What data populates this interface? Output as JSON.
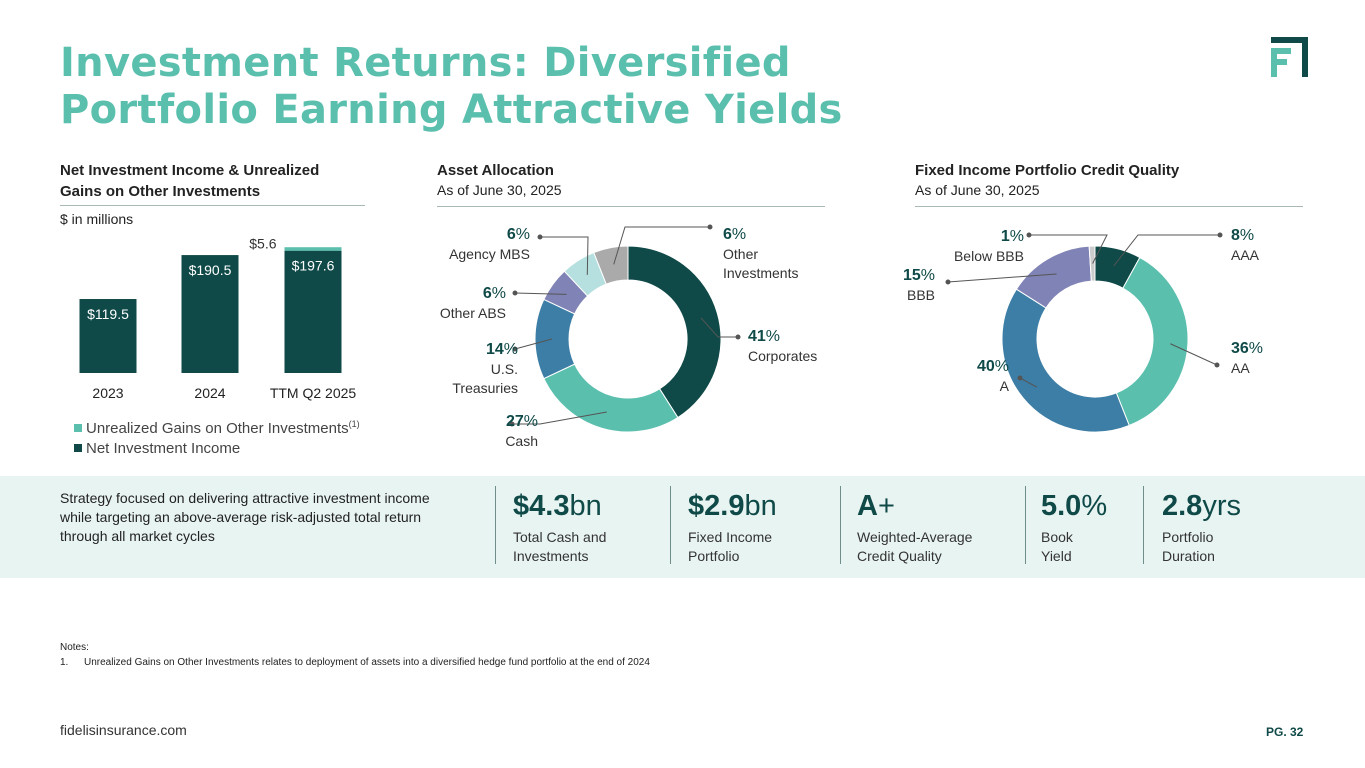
{
  "title": {
    "line1": "Investment Returns: Diversified",
    "line2": "Portfolio Earning Attractive Yields"
  },
  "colors": {
    "dark_teal": "#0f4a48",
    "teal": "#5bbfae",
    "steel_blue": "#3d7ea6",
    "lavender": "#8083b5",
    "light_teal": "#b6e0df",
    "gray": "#aaaaaa",
    "light_gray": "#cccccc",
    "band": "#e8f4f2"
  },
  "nii_section": {
    "heading_line1": "Net Investment Income & Unrealized",
    "heading_line2": "Gains on Other Investments",
    "units": "$ in millions",
    "legend_unrealized": "Unrealized Gains on Other Investments",
    "legend_unrealized_note": "(1)",
    "legend_nii": "Net Investment Income"
  },
  "asset_section": {
    "heading": "Asset Allocation",
    "as_of": "As of June 30, 2025"
  },
  "credit_section": {
    "heading": "Fixed Income Portfolio Credit Quality",
    "as_of": "As of June 30, 2025"
  },
  "chart_data": [
    {
      "type": "bar",
      "stacked": true,
      "title": "Net Investment Income & Unrealized Gains on Other Investments",
      "ylabel": "$ in millions",
      "categories": [
        "2023",
        "2024",
        "TTM Q2 2025"
      ],
      "series": [
        {
          "name": "Net Investment Income",
          "values": [
            119.5,
            190.5,
            197.6
          ],
          "labels": [
            "$119.5",
            "$190.5",
            "$197.6"
          ],
          "color": "#0f4a48"
        },
        {
          "name": "Unrealized Gains on Other Investments",
          "values": [
            0,
            0,
            5.6
          ],
          "labels": [
            "",
            "",
            "$5.6"
          ],
          "color": "#5bbfae"
        }
      ],
      "ylim": [
        0,
        210
      ],
      "grid": false
    },
    {
      "type": "pie",
      "donut": true,
      "title": "Asset Allocation",
      "subtitle": "As of June 30, 2025",
      "slices": [
        {
          "label": "Corporates",
          "value": 41,
          "color": "#0f4a48"
        },
        {
          "label": "Cash",
          "value": 27,
          "color": "#5bbfae"
        },
        {
          "label": "U.S. Treasuries",
          "value": 14,
          "color": "#3d7ea6"
        },
        {
          "label": "Other ABS",
          "value": 6,
          "color": "#8083b5"
        },
        {
          "label": "Agency MBS",
          "value": 6,
          "color": "#b6e0df"
        },
        {
          "label": "Other Investments",
          "value": 6,
          "color": "#aaaaaa"
        }
      ]
    },
    {
      "type": "pie",
      "donut": true,
      "title": "Fixed Income Portfolio Credit Quality",
      "subtitle": "As of June 30, 2025",
      "slices": [
        {
          "label": "AAA",
          "value": 8,
          "color": "#0f4a48"
        },
        {
          "label": "AA",
          "value": 36,
          "color": "#5bbfae"
        },
        {
          "label": "A",
          "value": 40,
          "color": "#3d7ea6"
        },
        {
          "label": "BBB",
          "value": 15,
          "color": "#8083b5"
        },
        {
          "label": "Below BBB",
          "value": 1,
          "color": "#cccccc"
        }
      ]
    }
  ],
  "strategy": {
    "line1": "Strategy focused on delivering attractive investment income",
    "line2": "while targeting an above-average risk-adjusted total return",
    "line3": "through all market cycles"
  },
  "stats": [
    {
      "value": "$4.3",
      "unit": "bn",
      "label1": "Total Cash and",
      "label2": "Investments"
    },
    {
      "value": "$2.9",
      "unit": "bn",
      "label1": "Fixed Income",
      "label2": "Portfolio"
    },
    {
      "value": "A",
      "unit": "+",
      "label1": "Weighted-Average",
      "label2": "Credit Quality"
    },
    {
      "value": "5.0",
      "unit": "%",
      "label1": "Book",
      "label2": "Yield"
    },
    {
      "value": "2.8",
      "unit": "yrs",
      "label1": "Portfolio",
      "label2": "Duration"
    }
  ],
  "notes": {
    "heading": "Notes:",
    "item_num": "1.",
    "item_text": "Unrealized Gains on Other Investments relates to deployment of assets into a diversified hedge fund portfolio at the end of 2024"
  },
  "footer": {
    "website": "fidelisinsurance.com",
    "page": "PG. 32"
  }
}
